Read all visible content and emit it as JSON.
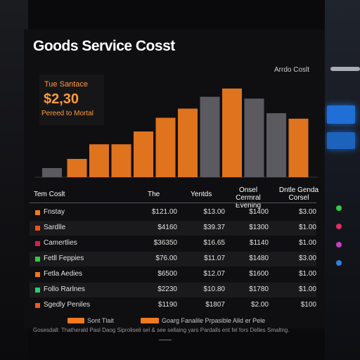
{
  "title": "Goods Service Cosst",
  "legend_label": "Arrdo Coslt",
  "kpi": {
    "label": "Tue Santace",
    "value": "$2,30",
    "sub": "Pereed to Mortal"
  },
  "colors": {
    "orange": "#e0731e",
    "grey": "#5a5a60",
    "highlight": "#f08a2a"
  },
  "chart_data": {
    "type": "bar",
    "title": "Goods Service Cosst",
    "series": [
      {
        "values": [
          10,
          20,
          36,
          36,
          50,
          65,
          75,
          88,
          97,
          86,
          70,
          64
        ]
      }
    ],
    "bar_colors": [
      "grey",
      "orange",
      "orange",
      "orange",
      "orange",
      "orange",
      "orange",
      "grey",
      "orange",
      "grey",
      "grey",
      "orange"
    ],
    "ylim": [
      0,
      100
    ],
    "grid": false
  },
  "table": {
    "headers": [
      "Tem Coslt",
      "The",
      "Yentds",
      "Onsel Cermral Evening",
      "Dntle Genda Corsel"
    ],
    "rows": [
      {
        "name": "Fnstay",
        "color": "#f07a1e",
        "values": [
          "$121.00",
          "$13.00",
          "$1400",
          "$3.00"
        ]
      },
      {
        "name": "Sardlle",
        "color": "#f0501e",
        "values": [
          "$4160",
          "$39.37",
          "$1300",
          "$1.00"
        ]
      },
      {
        "name": "Camertlies",
        "color": "#d81e4a",
        "values": [
          "$36350",
          "$16.65",
          "$1140",
          "$1.00"
        ]
      },
      {
        "name": "Fetll Feppies",
        "color": "#2ecc40",
        "values": [
          "$76.00",
          "$11.07",
          "$1480",
          "$3.00"
        ]
      },
      {
        "name": "Fetla Aedies",
        "color": "#f07a1e",
        "values": [
          "$6500",
          "$12.07",
          "$1600",
          "$1.00"
        ]
      },
      {
        "name": "Follo Rarlnes",
        "color": "#2ecc71",
        "values": [
          "$2230",
          "$10.80",
          "$1780",
          "$1.00"
        ]
      },
      {
        "name": "Sgedly Peniles",
        "color": "#f05a1e",
        "values": [
          "$1190",
          "$1807",
          "$2.00",
          "$100"
        ]
      }
    ]
  },
  "footer": {
    "legend1": "Sont Tlait",
    "legend2": "Goarg Fanalile Prpasible Alld er Pele",
    "note": "Gosesdall: Thatherald Pasl Daog Siproliseli sel & see sellaing yars Pardalls ent fel fors Delles Smaltng."
  }
}
